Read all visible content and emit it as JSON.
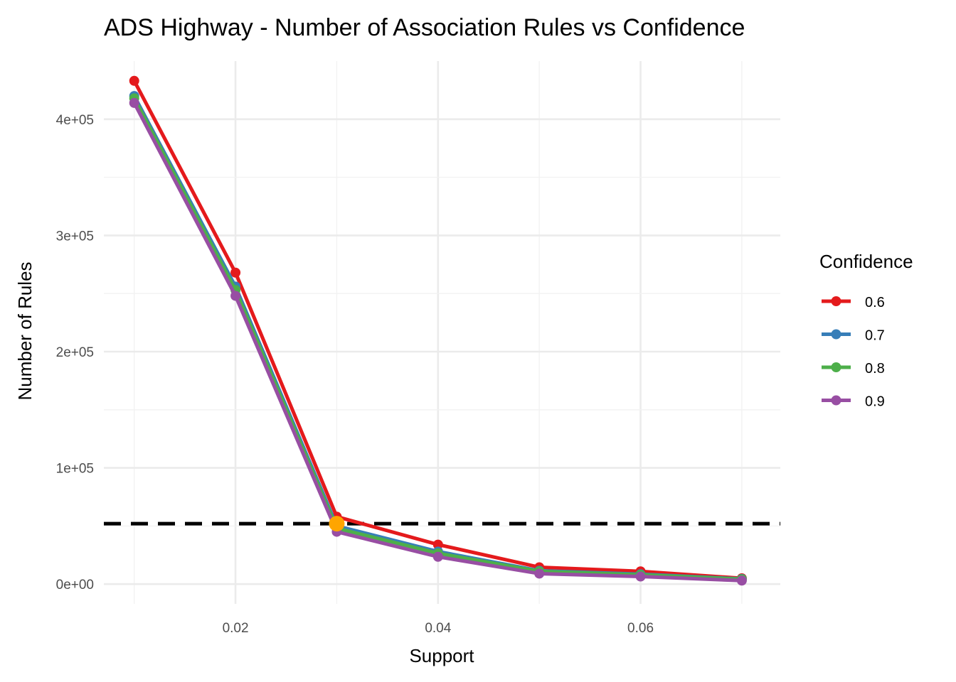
{
  "chart_data": {
    "type": "line",
    "title": "ADS Highway - Number of Association Rules vs Confidence",
    "xlabel": "Support",
    "ylabel": "Number of Rules",
    "x": [
      0.01,
      0.02,
      0.03,
      0.04,
      0.05,
      0.06,
      0.07
    ],
    "xlim": [
      0.007,
      0.0738
    ],
    "ylim": [
      -17000,
      450000
    ],
    "x_ticks": [
      0.02,
      0.04,
      0.06
    ],
    "x_tick_labels": [
      "0.02",
      "0.04",
      "0.06"
    ],
    "y_ticks": [
      0,
      100000,
      200000,
      300000,
      400000
    ],
    "y_tick_labels": [
      "0e+00",
      "1e+05",
      "2e+05",
      "3e+05",
      "4e+05"
    ],
    "grid": true,
    "legend": {
      "title": "Confidence",
      "placement": "right"
    },
    "series": [
      {
        "name": "0.6",
        "color": "#E41A1C",
        "values": [
          433000,
          268000,
          58000,
          34000,
          14500,
          11000,
          5000
        ]
      },
      {
        "name": "0.7",
        "color": "#377EB8",
        "values": [
          420000,
          256000,
          50000,
          28000,
          11500,
          8500,
          4500
        ]
      },
      {
        "name": "0.8",
        "color": "#4DAF4A",
        "values": [
          418000,
          253000,
          48000,
          26500,
          11000,
          8000,
          4200
        ]
      },
      {
        "name": "0.9",
        "color": "#984EA3",
        "values": [
          414000,
          248000,
          45000,
          23500,
          9000,
          6500,
          3000
        ]
      }
    ],
    "threshold": {
      "y": 52000,
      "style": "dashed",
      "color": "#000000"
    },
    "highlight": {
      "x": 0.03,
      "y": 52000,
      "color": "#FFA500"
    }
  }
}
